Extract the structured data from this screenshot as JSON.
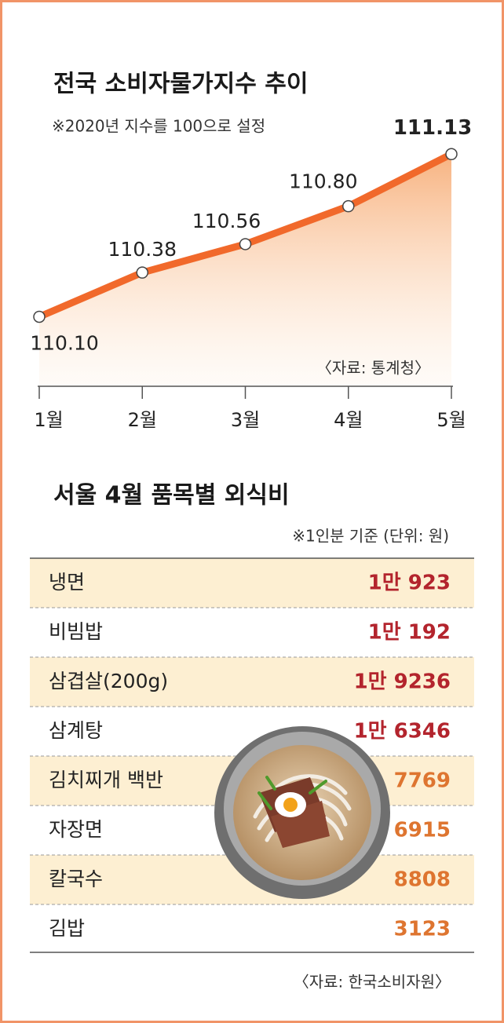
{
  "chart_data": {
    "type": "line",
    "title": "전국 소비자물가지수 추이",
    "subtitle": "※2020년 지수를 100으로 설정",
    "source": "〈자료: 통계청〉",
    "categories": [
      "1월",
      "2월",
      "3월",
      "4월",
      "5월"
    ],
    "values": [
      110.1,
      110.38,
      110.56,
      110.8,
      111.13
    ],
    "value_labels": [
      "110.10",
      "110.38",
      "110.56",
      "110.80",
      "111.13"
    ],
    "color": "#f1692b",
    "ylim": [
      109.66,
      111.36
    ]
  },
  "table": {
    "title": "서울 4월 품목별 외식비",
    "note": "※1인분 기준 (단위: 원)",
    "rows": [
      [
        "냉면",
        "1만 923"
      ],
      [
        "비빔밥",
        "1만 192"
      ],
      [
        "삼겹살(200g)",
        "1만 9236"
      ],
      [
        "삼계탕",
        "1만 6346"
      ],
      [
        "김치찌개 백반",
        "7769"
      ],
      [
        "자장면",
        "6915"
      ],
      [
        "칼국수",
        "8808"
      ],
      [
        "김밥",
        "3123"
      ]
    ],
    "source": "〈자료: 한국소비자원〉"
  }
}
